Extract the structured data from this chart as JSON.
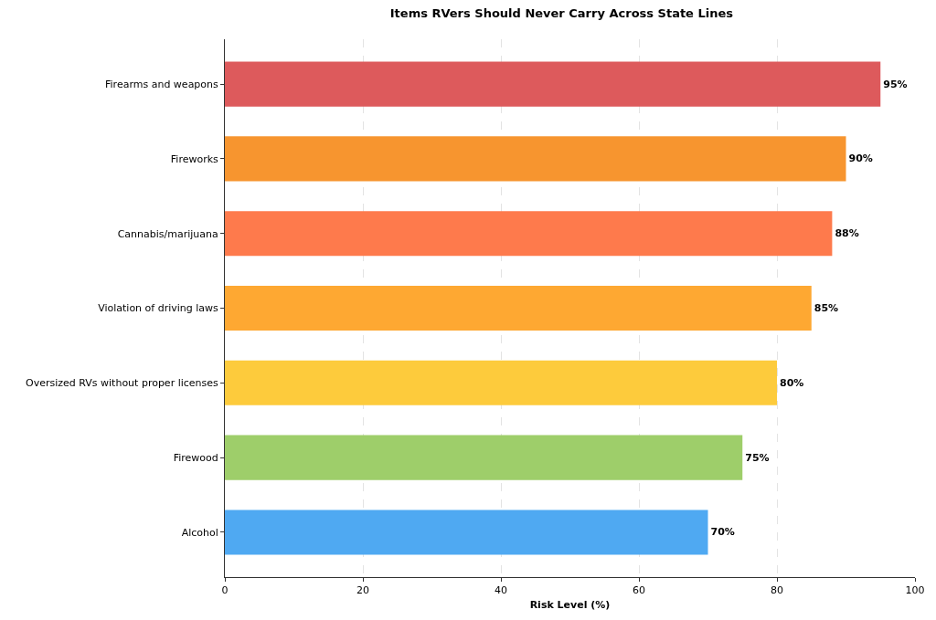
{
  "chart_data": {
    "type": "bar",
    "orientation": "horizontal",
    "title": "Items RVers Should Never Carry Across State Lines",
    "xlabel": "Risk Level (%)",
    "categories": [
      "Firearms and weapons",
      "Fireworks",
      "Cannabis/marijuana",
      "Violation of driving laws",
      "Oversized RVs without proper licenses",
      "Firewood",
      "Alcohol"
    ],
    "values": [
      95,
      90,
      88,
      85,
      80,
      75,
      70
    ],
    "colors": [
      "#dd5a5c",
      "#f7952f",
      "#fe7a4c",
      "#fea832",
      "#fdcb3c",
      "#9ece6a",
      "#4fa9f2"
    ],
    "value_labels": [
      "95%",
      "90%",
      "88%",
      "85%",
      "80%",
      "75%",
      "70%"
    ],
    "xlim": [
      0,
      100
    ],
    "xticks": [
      0,
      20,
      40,
      60,
      80,
      100
    ],
    "grid": "x"
  }
}
